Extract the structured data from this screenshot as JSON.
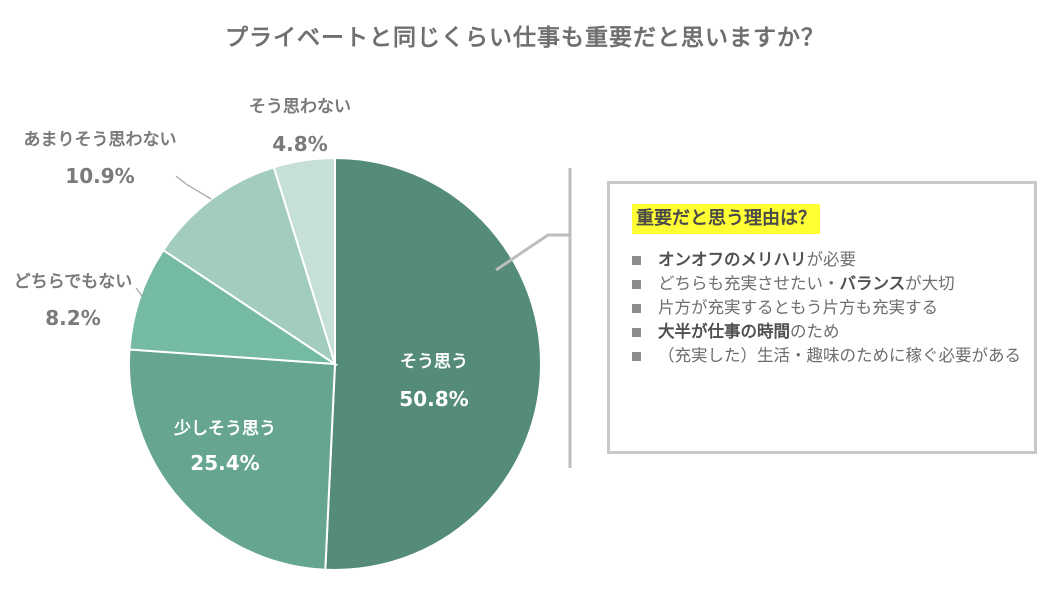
{
  "chart_data": {
    "type": "pie",
    "title": "プライベートと同じくらい仕事も重要だと思いますか？",
    "slices": [
      {
        "label": "そう思う",
        "value": 50.8,
        "value_text": "50.8%",
        "color": "#558b7b"
      },
      {
        "label": "少しそう思う",
        "value": 25.4,
        "value_text": "25.4%",
        "color": "#66a590"
      },
      {
        "label": "どちらでもない",
        "value": 8.2,
        "value_text": "8.2%",
        "color": "#75baa2"
      },
      {
        "label": "あまりそう思わない",
        "value": 10.9,
        "value_text": "10.9%",
        "color": "#a2cdbd"
      },
      {
        "label": "そう思わない",
        "value": 4.8,
        "value_text": "4.8%",
        "color": "#c6e0d5"
      }
    ],
    "start": "12 o'clock",
    "direction": "clockwise"
  },
  "callout": {
    "title": "重要だと思う理由は？",
    "title_highlight_color": "#ffff33",
    "items": [
      {
        "bold": "オンオフのメリハリ",
        "rest": "が必要"
      },
      {
        "pre": "どちらも充実させたい・",
        "bold": "バランス",
        "rest": "が大切"
      },
      {
        "rest": "片方が充実するともう片方も充実する"
      },
      {
        "bold": "大半が仕事の時間",
        "rest": "のため"
      },
      {
        "rest": "（充実した）生活・趣味のために稼ぐ必要がある"
      }
    ]
  }
}
